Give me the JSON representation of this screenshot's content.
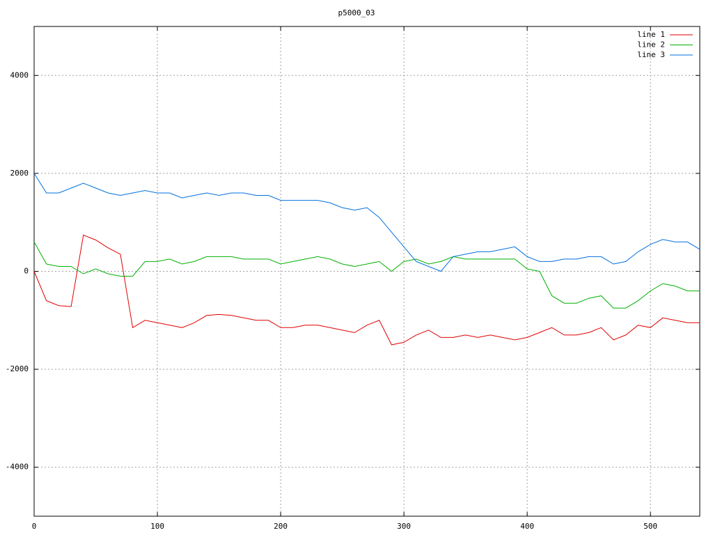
{
  "chart_data": {
    "type": "line",
    "title": "p5000_03",
    "x": [
      0,
      10,
      20,
      30,
      40,
      50,
      60,
      70,
      80,
      90,
      100,
      110,
      120,
      130,
      140,
      150,
      160,
      170,
      180,
      190,
      200,
      210,
      220,
      230,
      240,
      250,
      260,
      270,
      280,
      290,
      300,
      310,
      320,
      330,
      340,
      350,
      360,
      370,
      380,
      390,
      400,
      410,
      420,
      430,
      440,
      450,
      460,
      470,
      480,
      490,
      500,
      510,
      520,
      530,
      540
    ],
    "series": [
      {
        "name": "line 1",
        "color": "#e00000",
        "values": [
          0,
          -600,
          -700,
          -720,
          740,
          640,
          480,
          350,
          -1150,
          -1000,
          -1050,
          -1100,
          -1150,
          -1050,
          -900,
          -880,
          -900,
          -950,
          -1000,
          -1000,
          -1150,
          -1150,
          -1100,
          -1100,
          -1150,
          -1200,
          -1250,
          -1100,
          -1000,
          -1500,
          -1450,
          -1300,
          -1200,
          -1350,
          -1350,
          -1300,
          -1350,
          -1300,
          -1350,
          -1400,
          -1350,
          -1250,
          -1150,
          -1300,
          -1300,
          -1250,
          -1150,
          -1400,
          -1300,
          -1100,
          -1150,
          -950,
          -1000,
          -1050,
          -1050
        ]
      },
      {
        "name": "line 2",
        "color": "#00b000",
        "values": [
          600,
          150,
          100,
          100,
          -50,
          50,
          -50,
          -100,
          -100,
          200,
          200,
          250,
          150,
          200,
          300,
          300,
          300,
          250,
          250,
          250,
          150,
          200,
          250,
          300,
          250,
          150,
          100,
          150,
          200,
          0,
          200,
          250,
          150,
          200,
          300,
          250,
          250,
          250,
          250,
          250,
          50,
          0,
          -500,
          -650,
          -650,
          -550,
          -500,
          -750,
          -750,
          -600,
          -400,
          -250,
          -300,
          -400,
          -400
        ]
      },
      {
        "name": "line 3",
        "color": "#0070e0",
        "values": [
          2000,
          1600,
          1600,
          1700,
          1800,
          1700,
          1600,
          1550,
          1600,
          1650,
          1600,
          1600,
          1500,
          1550,
          1600,
          1550,
          1600,
          1600,
          1550,
          1550,
          1450,
          1450,
          1450,
          1450,
          1400,
          1300,
          1250,
          1300,
          1100,
          800,
          500,
          200,
          100,
          0,
          300,
          350,
          400,
          400,
          450,
          500,
          300,
          200,
          200,
          250,
          250,
          300,
          300,
          150,
          200,
          400,
          550,
          650,
          600,
          600,
          450
        ]
      }
    ],
    "xlim": [
      0,
      540
    ],
    "ylim": [
      -5000,
      5000
    ],
    "xticks": [
      0,
      100,
      200,
      300,
      400,
      500
    ],
    "yticks": [
      -4000,
      -2000,
      0,
      2000,
      4000
    ],
    "grid": true,
    "legend": "top-right"
  }
}
